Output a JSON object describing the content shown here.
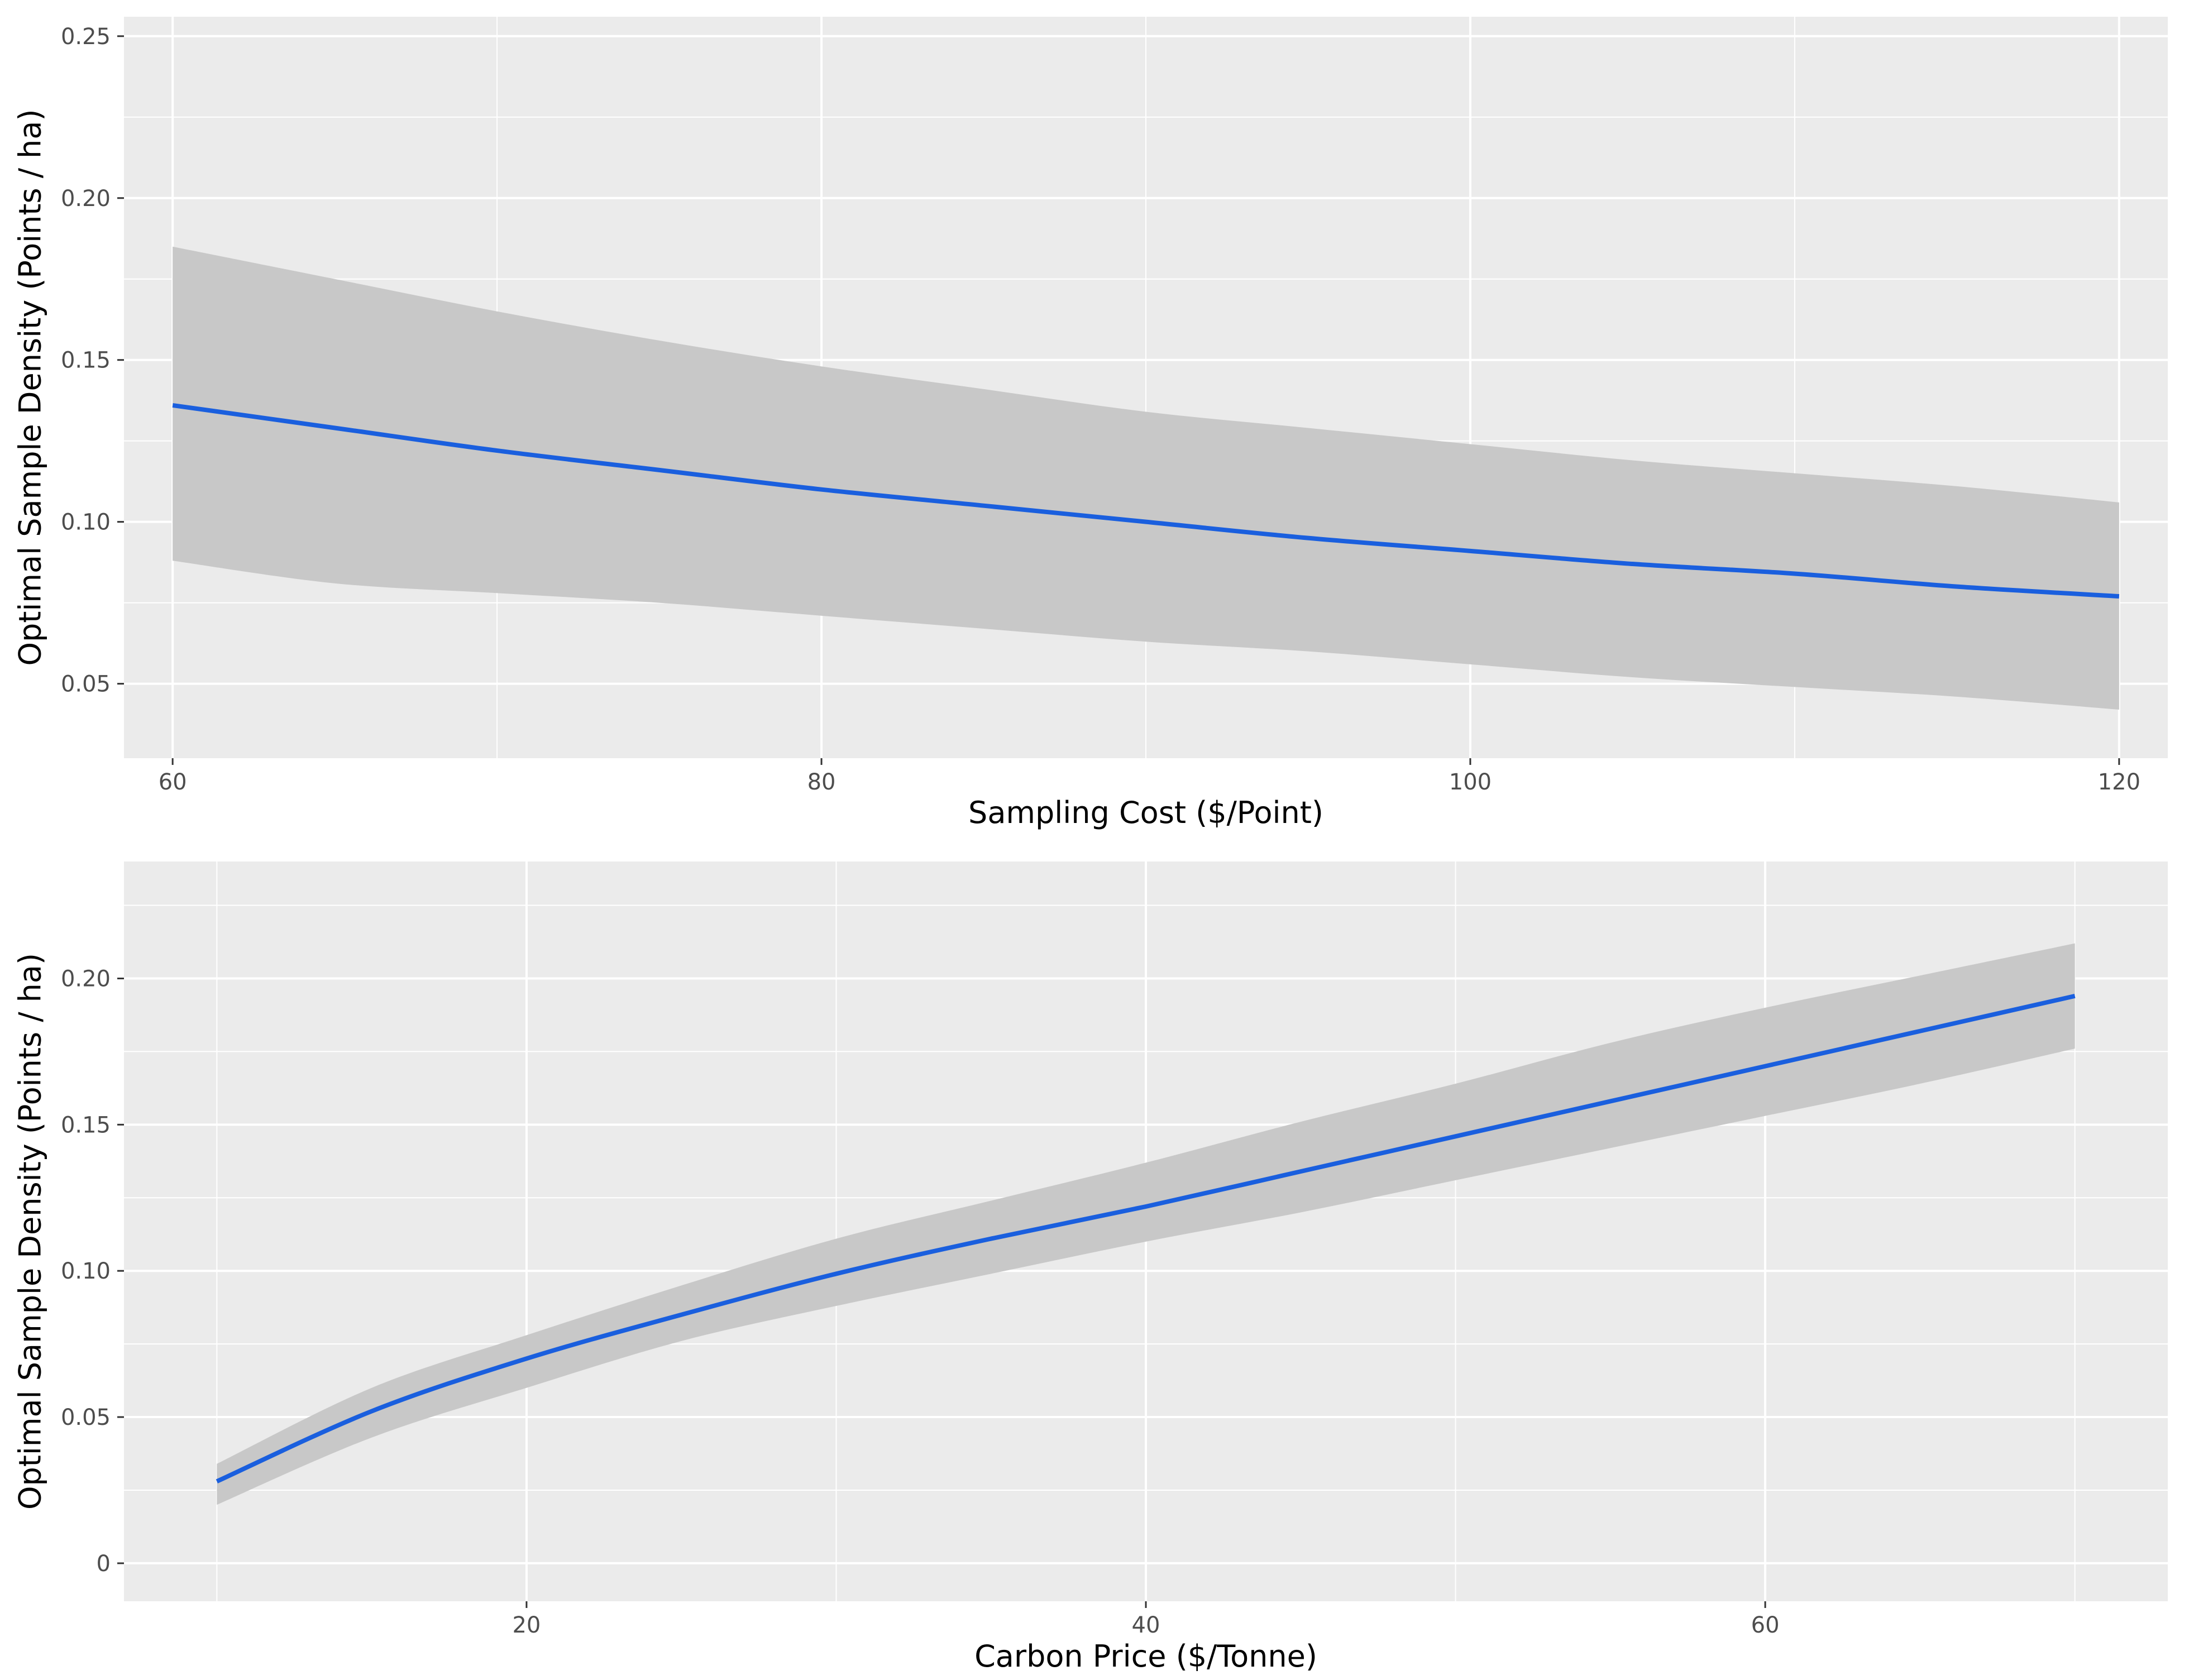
{
  "chart_data": [
    {
      "type": "line",
      "title": "",
      "xlabel": "Sampling Cost ($/Point)",
      "ylabel": "Optimal Sample Density (Points / ha)",
      "xlim": [
        58.5,
        121.5
      ],
      "ylim": [
        0.027,
        0.256
      ],
      "x_ticks": [
        60,
        80,
        100,
        120
      ],
      "x_tick_labels": [
        "60",
        "80",
        "100",
        "120"
      ],
      "y_ticks": [
        0.05,
        0.1,
        0.15,
        0.2,
        0.25
      ],
      "y_tick_labels": [
        "0.05",
        "0.10",
        "0.15",
        "0.20",
        "0.25"
      ],
      "grid": true,
      "series": [
        {
          "x": [
            60,
            65,
            70,
            75,
            80,
            85,
            90,
            95,
            100,
            105,
            110,
            115,
            120
          ],
          "values": [
            0.136,
            0.129,
            0.122,
            0.116,
            0.11,
            0.105,
            0.1,
            0.095,
            0.091,
            0.087,
            0.084,
            0.08,
            0.077
          ],
          "ci_upper": [
            0.185,
            0.175,
            0.165,
            0.156,
            0.148,
            0.141,
            0.134,
            0.129,
            0.124,
            0.119,
            0.115,
            0.111,
            0.106
          ],
          "ci_lower": [
            0.088,
            0.081,
            0.078,
            0.075,
            0.071,
            0.067,
            0.063,
            0.06,
            0.056,
            0.052,
            0.049,
            0.046,
            0.042
          ]
        }
      ],
      "colors": {
        "line": "#1a5fde",
        "ribbon": "#c8c8c8",
        "panel": "#ebebeb",
        "grid": "#ffffff"
      }
    },
    {
      "type": "line",
      "title": "",
      "xlabel": "Carbon Price ($/Tonne)",
      "ylabel": "Optimal Sample Density (Points / ha)",
      "xlim": [
        7,
        73
      ],
      "ylim": [
        -0.013,
        0.24
      ],
      "x_ticks": [
        20,
        40,
        60
      ],
      "x_tick_labels": [
        "20",
        "40",
        "60"
      ],
      "y_ticks": [
        0,
        0.05,
        0.1,
        0.15,
        0.2
      ],
      "y_tick_labels": [
        "0",
        "0.05",
        "0.10",
        "0.15",
        "0.20"
      ],
      "grid": true,
      "series": [
        {
          "x": [
            10,
            15,
            20,
            25,
            30,
            35,
            40,
            45,
            50,
            55,
            60,
            65,
            70
          ],
          "values": [
            0.028,
            0.052,
            0.07,
            0.085,
            0.099,
            0.111,
            0.122,
            0.134,
            0.146,
            0.158,
            0.17,
            0.182,
            0.194
          ],
          "ci_upper": [
            0.034,
            0.06,
            0.078,
            0.095,
            0.111,
            0.124,
            0.137,
            0.151,
            0.164,
            0.178,
            0.19,
            0.201,
            0.212
          ],
          "ci_lower": [
            0.02,
            0.043,
            0.06,
            0.076,
            0.088,
            0.099,
            0.11,
            0.12,
            0.131,
            0.142,
            0.153,
            0.164,
            0.176
          ]
        }
      ],
      "colors": {
        "line": "#1a5fde",
        "ribbon": "#c8c8c8",
        "panel": "#ebebeb",
        "grid": "#ffffff"
      }
    }
  ]
}
